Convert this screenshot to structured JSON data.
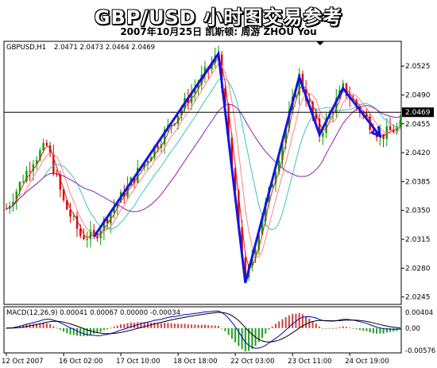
{
  "header": {
    "title": "GBP/USD 小时图交易参考",
    "subtitle": "2007年10月25日  凯斯顿: 周游 ZHOU You"
  },
  "chart_data": {
    "type": "candlestick",
    "symbol_label": "GBPUSD,H1",
    "ohlc_label": "2.0471 2.0473 2.0464 2.0469",
    "current_price": 2.0469,
    "current_price_label": "2.0469",
    "ylim": [
      2.0236,
      2.0555
    ],
    "y_ticks": [
      "2.0525",
      "2.0490",
      "2.0455",
      "2.0420",
      "2.0385",
      "2.0350",
      "2.0315",
      "2.0280",
      "2.0245"
    ],
    "x_ticks": [
      "12 Oct 2007",
      "16 Oct 02:00",
      "17 Oct 10:00",
      "18 Oct 18:00",
      "22 Oct 03:00",
      "23 Oct 11:00",
      "24 Oct 19:00"
    ],
    "trend_path": [
      {
        "bar": 26,
        "price": 2.0318
      },
      {
        "bar": 63,
        "price": 2.054
      },
      {
        "bar": 71,
        "price": 2.0262
      },
      {
        "bar": 87,
        "price": 2.0512
      },
      {
        "bar": 93,
        "price": 2.0442
      },
      {
        "bar": 100,
        "price": 2.0498
      },
      {
        "bar": 111,
        "price": 2.044
      }
    ],
    "macd": {
      "label": "MACD(12,26,9) 0.00041 0.00067 0.00000 -0.00034",
      "ylim": [
        -0.0064,
        0.0055
      ],
      "y_ticks": [
        "0.00404",
        "0.00",
        "-0.00576"
      ]
    },
    "colors": {
      "candle_up": "#00a000",
      "candle_down": "#e00000",
      "trend": "#1414e0",
      "ma_fast": "#e02020",
      "ma_mid": "#ff8080",
      "ma_cyan": "#40c0c0",
      "ma_slow": "#9020b0",
      "macd_signal": "#000000",
      "macd_line": "#0000c0"
    }
  }
}
